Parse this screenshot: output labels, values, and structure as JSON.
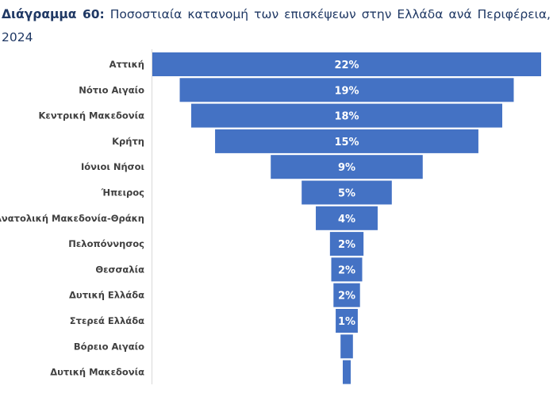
{
  "title": {
    "prefix": "Διάγραμμα 60:",
    "text": "Ποσοστιαία κατανομή των επισκέψεων στην Ελλάδα ανά Περιφέρεια, 2024"
  },
  "chart_data": {
    "type": "bar",
    "subtype": "funnel",
    "title": "Ποσοστιαία κατανομή των επισκέψεων στην Ελλάδα ανά Περιφέρεια, 2024",
    "xlabel": "",
    "ylabel": "",
    "unit": "%",
    "bar_color": "#4472c4",
    "categories": [
      "Αττική",
      "Νότιο Αιγαίο",
      "Κεντρική Μακεδονία",
      "Κρήτη",
      "Ιόνιοι Νήσοι",
      "Ήπειρος",
      "Ανατολική Μακεδονία-Θράκη",
      "Πελοπόννησος",
      "Θεσσαλία",
      "Δυτική Ελλάδα",
      "Στερεά Ελλάδα",
      "Βόρειο Αιγαίο",
      "Δυτική Μακεδονία"
    ],
    "values": [
      22,
      18.9,
      17.6,
      14.9,
      8.6,
      5.1,
      3.5,
      1.9,
      1.75,
      1.5,
      1.25,
      0.7,
      0.45
    ],
    "data_labels": [
      "22%",
      "19%",
      "18%",
      "15%",
      "9%",
      "5%",
      "4%",
      "2%",
      "2%",
      "2%",
      "1%",
      "",
      ""
    ]
  }
}
